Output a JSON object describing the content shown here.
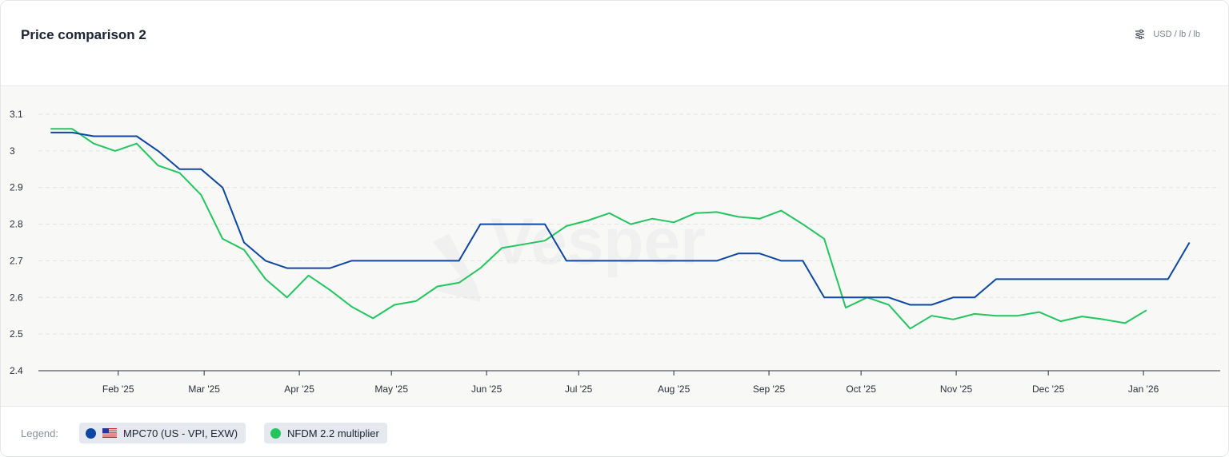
{
  "header": {
    "title": "Price comparison 2",
    "units": "USD / lb / lb",
    "units_icon": "sliders-icon"
  },
  "legend": {
    "label": "Legend:",
    "items": [
      {
        "label": "MPC70 (US - VPI, EXW)",
        "color": "#0d47a1",
        "icon": "us-flag-icon"
      },
      {
        "label": "NFDM 2.2 multiplier",
        "color": "#22c55e"
      }
    ]
  },
  "watermark": "Vesper",
  "chart_data": {
    "type": "line",
    "ylim": [
      2.4,
      3.1
    ],
    "yticks": [
      2.4,
      2.5,
      2.6,
      2.7,
      2.8,
      2.9,
      3,
      3.1
    ],
    "xlim": [
      "2025-01-06",
      "2026-01-26"
    ],
    "xticks": [
      {
        "date": "2025-02-01",
        "label": "Feb '25"
      },
      {
        "date": "2025-03-01",
        "label": "Mar '25"
      },
      {
        "date": "2025-04-01",
        "label": "Apr '25"
      },
      {
        "date": "2025-05-01",
        "label": "May '25"
      },
      {
        "date": "2025-06-01",
        "label": "Jun '25"
      },
      {
        "date": "2025-07-01",
        "label": "Jul '25"
      },
      {
        "date": "2025-08-01",
        "label": "Aug '25"
      },
      {
        "date": "2025-09-01",
        "label": "Sep '25"
      },
      {
        "date": "2025-10-01",
        "label": "Oct '25"
      },
      {
        "date": "2025-11-01",
        "label": "Nov '25"
      },
      {
        "date": "2025-12-01",
        "label": "Dec '25"
      },
      {
        "date": "2026-01-01",
        "label": "Jan '26"
      }
    ],
    "grid": "horizontal-dashed",
    "series": [
      {
        "name": "MPC70 (US - VPI, EXW)",
        "color": "#0d47a1",
        "points": [
          [
            "2025-01-10",
            3.05
          ],
          [
            "2025-01-17",
            3.05
          ],
          [
            "2025-01-24",
            3.04
          ],
          [
            "2025-01-31",
            3.04
          ],
          [
            "2025-02-07",
            3.04
          ],
          [
            "2025-02-14",
            3.0
          ],
          [
            "2025-02-21",
            2.95
          ],
          [
            "2025-02-28",
            2.95
          ],
          [
            "2025-03-07",
            2.9
          ],
          [
            "2025-03-14",
            2.75
          ],
          [
            "2025-03-21",
            2.7
          ],
          [
            "2025-03-28",
            2.68
          ],
          [
            "2025-04-04",
            2.68
          ],
          [
            "2025-04-11",
            2.68
          ],
          [
            "2025-04-18",
            2.7
          ],
          [
            "2025-04-25",
            2.7
          ],
          [
            "2025-05-02",
            2.7
          ],
          [
            "2025-05-09",
            2.7
          ],
          [
            "2025-05-16",
            2.7
          ],
          [
            "2025-05-23",
            2.7
          ],
          [
            "2025-05-30",
            2.8
          ],
          [
            "2025-06-06",
            2.8
          ],
          [
            "2025-06-13",
            2.8
          ],
          [
            "2025-06-20",
            2.8
          ],
          [
            "2025-06-27",
            2.7
          ],
          [
            "2025-07-04",
            2.7
          ],
          [
            "2025-07-11",
            2.7
          ],
          [
            "2025-07-18",
            2.7
          ],
          [
            "2025-07-25",
            2.7
          ],
          [
            "2025-08-01",
            2.7
          ],
          [
            "2025-08-08",
            2.7
          ],
          [
            "2025-08-15",
            2.7
          ],
          [
            "2025-08-22",
            2.72
          ],
          [
            "2025-08-29",
            2.72
          ],
          [
            "2025-09-05",
            2.7
          ],
          [
            "2025-09-12",
            2.7
          ],
          [
            "2025-09-19",
            2.6
          ],
          [
            "2025-09-26",
            2.6
          ],
          [
            "2025-10-03",
            2.6
          ],
          [
            "2025-10-10",
            2.6
          ],
          [
            "2025-10-17",
            2.58
          ],
          [
            "2025-10-24",
            2.58
          ],
          [
            "2025-10-31",
            2.6
          ],
          [
            "2025-11-07",
            2.6
          ],
          [
            "2025-11-14",
            2.65
          ],
          [
            "2025-11-21",
            2.65
          ],
          [
            "2025-11-28",
            2.65
          ],
          [
            "2025-12-05",
            2.65
          ],
          [
            "2025-12-12",
            2.65
          ],
          [
            "2025-12-19",
            2.65
          ],
          [
            "2025-12-26",
            2.65
          ],
          [
            "2026-01-02",
            2.65
          ],
          [
            "2026-01-09",
            2.65
          ],
          [
            "2026-01-16",
            2.75
          ]
        ]
      },
      {
        "name": "NFDM 2.2 multiplier",
        "color": "#22c55e",
        "points": [
          [
            "2025-01-10",
            3.06
          ],
          [
            "2025-01-17",
            3.06
          ],
          [
            "2025-01-24",
            3.02
          ],
          [
            "2025-01-31",
            3.0
          ],
          [
            "2025-02-07",
            3.02
          ],
          [
            "2025-02-14",
            2.96
          ],
          [
            "2025-02-21",
            2.94
          ],
          [
            "2025-02-28",
            2.88
          ],
          [
            "2025-03-07",
            2.76
          ],
          [
            "2025-03-14",
            2.73
          ],
          [
            "2025-03-21",
            2.65
          ],
          [
            "2025-03-28",
            2.6
          ],
          [
            "2025-04-04",
            2.66
          ],
          [
            "2025-04-11",
            2.62
          ],
          [
            "2025-04-18",
            2.575
          ],
          [
            "2025-04-25",
            2.543
          ],
          [
            "2025-05-02",
            2.58
          ],
          [
            "2025-05-09",
            2.59
          ],
          [
            "2025-05-16",
            2.63
          ],
          [
            "2025-05-23",
            2.64
          ],
          [
            "2025-05-30",
            2.68
          ],
          [
            "2025-06-06",
            2.735
          ],
          [
            "2025-06-13",
            2.745
          ],
          [
            "2025-06-20",
            2.755
          ],
          [
            "2025-06-27",
            2.795
          ],
          [
            "2025-07-04",
            2.81
          ],
          [
            "2025-07-11",
            2.83
          ],
          [
            "2025-07-18",
            2.8
          ],
          [
            "2025-07-25",
            2.815
          ],
          [
            "2025-08-01",
            2.805
          ],
          [
            "2025-08-08",
            2.83
          ],
          [
            "2025-08-15",
            2.833
          ],
          [
            "2025-08-22",
            2.82
          ],
          [
            "2025-08-29",
            2.815
          ],
          [
            "2025-09-05",
            2.837
          ],
          [
            "2025-09-12",
            2.8
          ],
          [
            "2025-09-19",
            2.76
          ],
          [
            "2025-09-26",
            2.572
          ],
          [
            "2025-10-03",
            2.6
          ],
          [
            "2025-10-10",
            2.58
          ],
          [
            "2025-10-17",
            2.515
          ],
          [
            "2025-10-24",
            2.55
          ],
          [
            "2025-10-31",
            2.54
          ],
          [
            "2025-11-07",
            2.555
          ],
          [
            "2025-11-14",
            2.55
          ],
          [
            "2025-11-21",
            2.55
          ],
          [
            "2025-11-28",
            2.56
          ],
          [
            "2025-12-05",
            2.535
          ],
          [
            "2025-12-12",
            2.548
          ],
          [
            "2025-12-19",
            2.54
          ],
          [
            "2025-12-26",
            2.53
          ],
          [
            "2026-01-02",
            2.565
          ]
        ]
      }
    ]
  }
}
